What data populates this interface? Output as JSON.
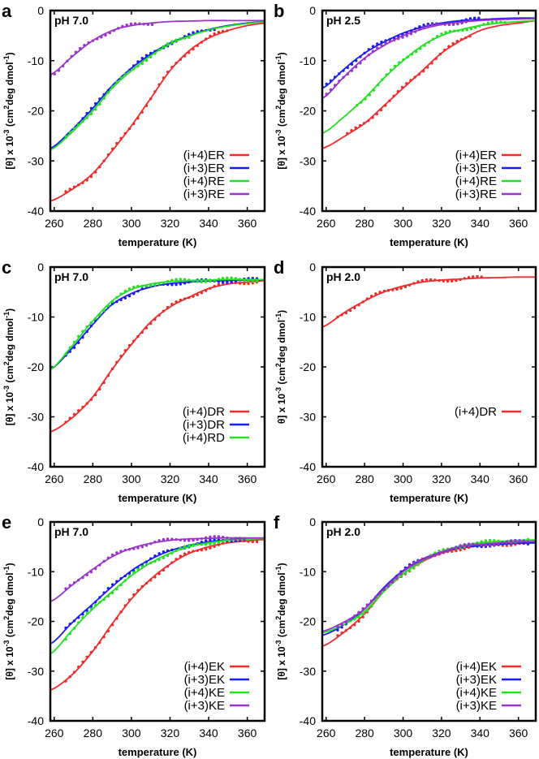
{
  "chart_data": {
    "type": "line",
    "x": [
      258,
      270,
      280,
      290,
      300,
      310,
      320,
      330,
      340,
      350,
      360,
      370
    ],
    "xlim": [
      258,
      369
    ],
    "ylim": [
      -40,
      0
    ],
    "xticks": [
      "260",
      "280",
      "300",
      "320",
      "340",
      "360"
    ],
    "yticks": [
      "0",
      "-10",
      "-20",
      "-30",
      "-40"
    ],
    "xlabel": "temperature (K)",
    "ylabel_parts": [
      "[θ] x 10",
      "-3",
      " (cm",
      "2",
      "deg dmol",
      "-1",
      ")"
    ],
    "ylabel_parts_d": [
      "θ] x 10",
      "-3",
      " (cm",
      "2",
      "deg dmol",
      "-1",
      ")"
    ],
    "legend_placement": "bottom-right",
    "colors": {
      "red": "#f02a2a",
      "blue": "#1c1cf0",
      "green": "#22e022",
      "purple": "#9933cc"
    },
    "panels": [
      {
        "letter": "a",
        "condition": "pH 7.0",
        "series": [
          {
            "name": "(i+4)ER",
            "color": "red",
            "values": [
              -38,
              -35.5,
              -32.5,
              -28,
              -23,
              -17.5,
              -12,
              -8,
              -5.5,
              -4,
              -3,
              -2.5
            ],
            "points_range": [
              266,
              351
            ]
          },
          {
            "name": "(i+3)ER",
            "color": "blue",
            "values": [
              -27.5,
              -23.5,
              -19.5,
              -15,
              -11.5,
              -8.7,
              -6.5,
              -5,
              -3.8,
              -3,
              -2.5,
              -2.2
            ],
            "points_range": [
              266,
              345
            ]
          },
          {
            "name": "(i+4)RE",
            "color": "green",
            "values": [
              -27.8,
              -24,
              -20,
              -15.5,
              -12,
              -9,
              -6.7,
              -5.1,
              -3.9,
              -3.1,
              -2.6,
              -2.2
            ],
            "points_range": [
              266,
              331
            ]
          },
          {
            "name": "(i+3)RE",
            "color": "purple",
            "values": [
              -12.8,
              -9,
              -6,
              -4,
              -3,
              -2.5,
              -2.2,
              -2.1,
              -2,
              -2,
              -2,
              -2
            ],
            "points_range": [
              258,
              312
            ]
          }
        ]
      },
      {
        "letter": "b",
        "condition": "pH 2.5",
        "series": [
          {
            "name": "(i+4)ER",
            "color": "red",
            "values": [
              -27.5,
              -25,
              -22.5,
              -19,
              -15.5,
              -12,
              -8.5,
              -6,
              -4,
              -3,
              -2.5,
              -2
            ],
            "points_range": [
              271,
              336
            ]
          },
          {
            "name": "(i+3)ER",
            "color": "blue",
            "values": [
              -15.5,
              -11.5,
              -8.5,
              -6.3,
              -4.5,
              -3.3,
              -2.5,
              -2,
              -1.8,
              -1.6,
              -1.5,
              -1.5
            ],
            "points_range": [
              258,
              340
            ]
          },
          {
            "name": "(i+4)RE",
            "color": "green",
            "values": [
              -24.5,
              -21,
              -17.5,
              -13.5,
              -10,
              -7,
              -5,
              -3.8,
              -3,
              -2.5,
              -2.2,
              -2
            ],
            "points_range": [
              276,
              355
            ]
          },
          {
            "name": "(i+3)RE",
            "color": "purple",
            "values": [
              -17.5,
              -13,
              -9.5,
              -7,
              -5,
              -3.7,
              -2.8,
              -2.3,
              -2,
              -1.8,
              -1.7,
              -1.6
            ],
            "points_range": [
              258,
              336
            ]
          }
        ]
      },
      {
        "letter": "c",
        "condition": "pH 7.0",
        "series": [
          {
            "name": "(i+4)DR",
            "color": "red",
            "values": [
              -33,
              -30,
              -26,
              -20.5,
              -15.5,
              -11,
              -8,
              -6,
              -4.3,
              -3.4,
              -3,
              -2.7
            ],
            "points_range": [
              266,
              366
            ]
          },
          {
            "name": "(i+3)DR",
            "color": "blue",
            "values": [
              -20.5,
              -16,
              -11.5,
              -7.5,
              -5.3,
              -4,
              -3.3,
              -3,
              -2.8,
              -2.7,
              -2.6,
              -2.5
            ],
            "points_range": [
              266,
              366
            ]
          },
          {
            "name": "(i+4)RD",
            "color": "green",
            "values": [
              -20.5,
              -15.5,
              -10.8,
              -6.8,
              -4.5,
              -3.4,
              -2.9,
              -2.7,
              -2.6,
              -2.5,
              -2.5,
              -2.5
            ],
            "points_range": [
              266,
              366
            ]
          }
        ]
      },
      {
        "letter": "d",
        "condition": "pH 2.0",
        "alt_ylabel": true,
        "series": [
          {
            "name": "(i+4)DR",
            "color": "red",
            "values": [
              -12,
              -9,
              -6.8,
              -5,
              -3.8,
              -3,
              -2.6,
              -2.4,
              -2.2,
              -2.1,
              -2,
              -2
            ],
            "points_range": [
              266,
              341
            ]
          }
        ]
      },
      {
        "letter": "e",
        "condition": "pH 7.0",
        "series": [
          {
            "name": "(i+4)EK",
            "color": "red",
            "values": [
              -33.8,
              -30.5,
              -26,
              -20.5,
              -15.5,
              -11.5,
              -8.5,
              -6.3,
              -5,
              -4.2,
              -3.8,
              -3.5
            ],
            "points_range": [
              266,
              366
            ]
          },
          {
            "name": "(i+3)EK",
            "color": "blue",
            "values": [
              -24.5,
              -20,
              -16.5,
              -13,
              -9.8,
              -7.5,
              -5.8,
              -4.7,
              -4,
              -3.6,
              -3.4,
              -3.3
            ],
            "points_range": [
              266,
              360
            ]
          },
          {
            "name": "(i+4)KE",
            "color": "green",
            "values": [
              -26.5,
              -21.5,
              -17.5,
              -14,
              -10.8,
              -8.2,
              -6.3,
              -5,
              -4.2,
              -3.7,
              -3.5,
              -3.3
            ],
            "points_range": [
              266,
              360
            ]
          },
          {
            "name": "(i+3)KE",
            "color": "purple",
            "values": [
              -16,
              -12.5,
              -9.5,
              -7,
              -5.3,
              -4.3,
              -3.7,
              -3.4,
              -3.3,
              -3.2,
              -3.2,
              -3.2
            ],
            "points_range": [
              266,
              360
            ]
          }
        ]
      },
      {
        "letter": "f",
        "condition": "pH 2.0",
        "series": [
          {
            "name": "(i+4)EK",
            "color": "red",
            "values": [
              -25,
              -22,
              -18.5,
              -14,
              -10.5,
              -8,
              -6.3,
              -5.3,
              -4.8,
              -4.5,
              -4.3,
              -4.2
            ],
            "points_range": [
              266,
              367
            ]
          },
          {
            "name": "(i+3)EK",
            "color": "blue",
            "values": [
              -22.8,
              -20.5,
              -17.5,
              -13.2,
              -9.8,
              -7.5,
              -6,
              -5.2,
              -4.7,
              -4.5,
              -4.3,
              -4.2
            ],
            "points_range": [
              266,
              367
            ]
          },
          {
            "name": "(i+4)KE",
            "color": "green",
            "values": [
              -22.3,
              -20.5,
              -18,
              -14,
              -10.5,
              -7.8,
              -6,
              -4.8,
              -4.2,
              -3.9,
              -3.7,
              -3.6
            ],
            "points_range": [
              266,
              367
            ]
          },
          {
            "name": "(i+3)KE",
            "color": "purple",
            "values": [
              -22,
              -20,
              -17.5,
              -13.5,
              -10,
              -7.7,
              -6,
              -5,
              -4.5,
              -4.2,
              -4,
              -3.9
            ],
            "points_range": [
              266,
              367
            ]
          }
        ]
      }
    ]
  }
}
